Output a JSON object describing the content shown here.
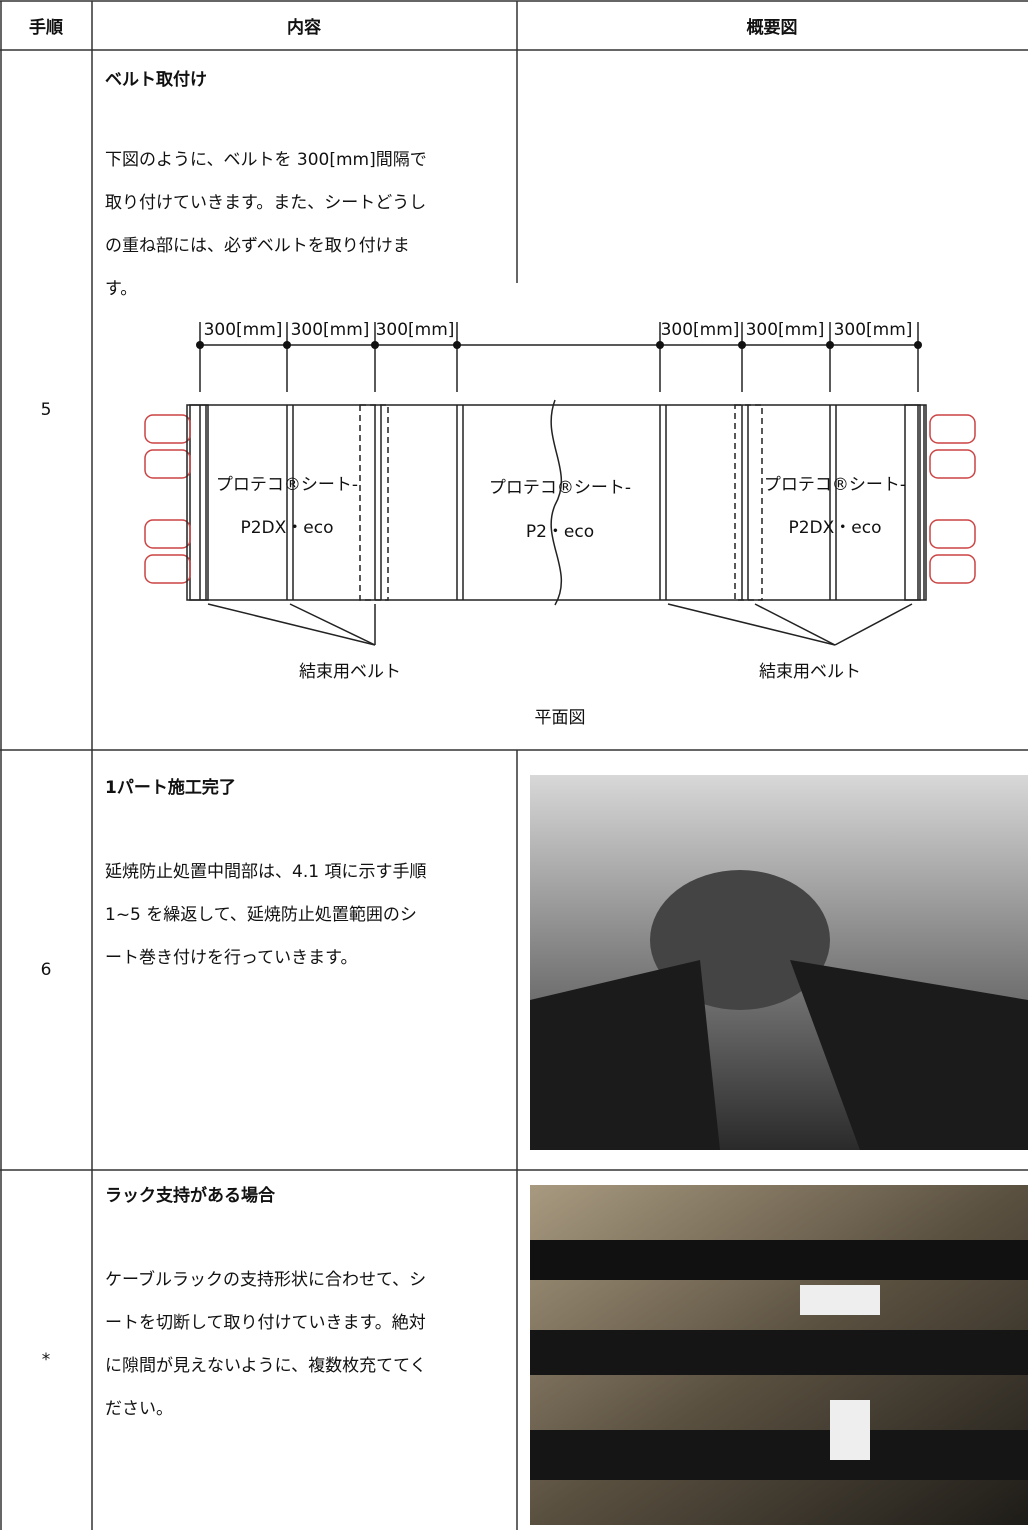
{
  "header": {
    "step": "手順",
    "content": "内容",
    "diagram": "概要図"
  },
  "rows": [
    {
      "step": "5",
      "title": "ベルト取付け",
      "body": [
        "下図のように、ベルトを 300[mm]間隔で",
        "取り付けていきます。また、シートどうし",
        "の重ね部には、必ずベルトを取り付けま",
        "す。"
      ],
      "diagram": {
        "dimensions": [
          "300[mm]",
          "300[mm]",
          "300[mm]",
          "300[mm]",
          "300[mm]",
          "300[mm]"
        ],
        "sheets": [
          {
            "name": "プロテコ®シート-",
            "model": "P2DX・eco"
          },
          {
            "name": "プロテコ®シート-",
            "model": "P2・eco"
          },
          {
            "name": "プロテコ®シート-",
            "model": "P2DX・eco"
          }
        ],
        "belt_labels": [
          "結束用ベルト",
          "結束用ベルト"
        ],
        "caption": "平面図"
      }
    },
    {
      "step": "6",
      "title": "1パート施工完了",
      "body": [
        "延焼防止処置中間部は、4.1 項に示す手順",
        "1~5 を繰返して、延焼防止処置範囲のシ",
        "ート巻き付けを行っていきます。"
      ]
    },
    {
      "step": "*",
      "title": "ラック支持がある場合",
      "body": [
        "ケーブルラックの支持形状に合わせて、シ",
        "ートを切断して取り付けていきます。絶対",
        "に隙間が見えないように、複数枚充ててく",
        "ださい。"
      ]
    }
  ]
}
